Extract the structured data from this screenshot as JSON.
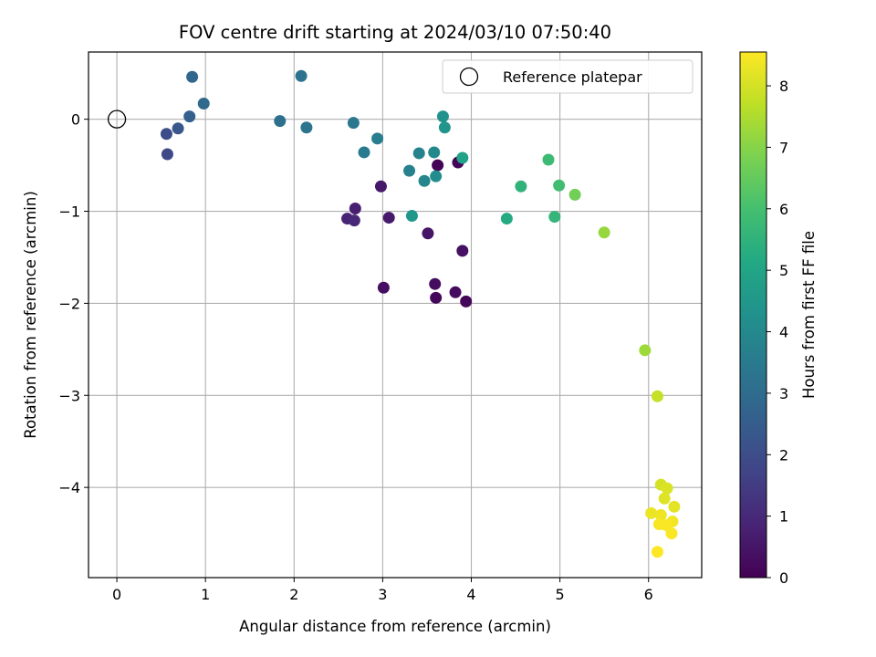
{
  "chart_data": {
    "type": "scatter",
    "title": "FOV centre drift starting at 2024/03/10 07:50:40",
    "xlabel": "Angular distance from reference (arcmin)",
    "ylabel": "Rotation from reference (arcmin)",
    "xlim": [
      -0.32,
      6.6
    ],
    "ylim": [
      -4.98,
      0.73
    ],
    "x_ticks": [
      0,
      1,
      2,
      3,
      4,
      5,
      6
    ],
    "x_tick_labels": [
      "0",
      "1",
      "2",
      "3",
      "4",
      "5",
      "6"
    ],
    "y_ticks": [
      0,
      -1,
      -2,
      -3,
      -4
    ],
    "y_tick_labels": [
      "0",
      "−1",
      "−2",
      "−3",
      "−4"
    ],
    "grid": true,
    "legend": {
      "position": "top-right",
      "label": "Reference platepar"
    },
    "reference_point": {
      "x": 0,
      "y": 0
    },
    "colorbar": {
      "label": "Hours from first FF file",
      "colormap": "viridis",
      "range": [
        0,
        8.55
      ],
      "ticks": [
        0,
        1,
        2,
        3,
        4,
        5,
        6,
        7,
        8
      ],
      "tick_labels": [
        "0",
        "1",
        "2",
        "3",
        "4",
        "5",
        "6",
        "7",
        "8"
      ]
    },
    "series": [
      {
        "points": [
          {
            "x": 3.62,
            "y": -0.5,
            "c": 0.05
          },
          {
            "x": 3.85,
            "y": -0.47,
            "c": 0.1
          },
          {
            "x": 3.94,
            "y": -1.98,
            "c": 0.15
          },
          {
            "x": 3.6,
            "y": -1.94,
            "c": 0.2
          },
          {
            "x": 3.82,
            "y": -1.88,
            "c": 0.25
          },
          {
            "x": 3.59,
            "y": -1.79,
            "c": 0.3
          },
          {
            "x": 3.01,
            "y": -1.83,
            "c": 0.35
          },
          {
            "x": 3.9,
            "y": -1.43,
            "c": 0.4
          },
          {
            "x": 3.51,
            "y": -1.24,
            "c": 0.5
          },
          {
            "x": 2.98,
            "y": -0.73,
            "c": 0.55
          },
          {
            "x": 3.07,
            "y": -1.07,
            "c": 0.6
          },
          {
            "x": 2.69,
            "y": -0.97,
            "c": 0.75
          },
          {
            "x": 2.6,
            "y": -1.08,
            "c": 0.85
          },
          {
            "x": 2.68,
            "y": -1.1,
            "c": 1.0
          },
          {
            "x": 0.57,
            "y": -0.38,
            "c": 1.9
          },
          {
            "x": 0.56,
            "y": -0.16,
            "c": 2.0
          },
          {
            "x": 0.69,
            "y": -0.1,
            "c": 2.3
          },
          {
            "x": 0.82,
            "y": 0.03,
            "c": 2.6
          },
          {
            "x": 0.85,
            "y": 0.46,
            "c": 2.8
          },
          {
            "x": 0.98,
            "y": 0.17,
            "c": 2.9
          },
          {
            "x": 1.84,
            "y": -0.02,
            "c": 3.1
          },
          {
            "x": 2.08,
            "y": 0.47,
            "c": 3.2
          },
          {
            "x": 2.14,
            "y": -0.09,
            "c": 3.3
          },
          {
            "x": 2.67,
            "y": -0.04,
            "c": 3.4
          },
          {
            "x": 2.79,
            "y": -0.36,
            "c": 3.5
          },
          {
            "x": 2.94,
            "y": -0.21,
            "c": 3.6
          },
          {
            "x": 3.3,
            "y": -0.56,
            "c": 3.7
          },
          {
            "x": 3.41,
            "y": -0.37,
            "c": 3.8
          },
          {
            "x": 3.47,
            "y": -0.67,
            "c": 3.9
          },
          {
            "x": 3.58,
            "y": -0.36,
            "c": 4.0
          },
          {
            "x": 3.6,
            "y": -0.62,
            "c": 4.1
          },
          {
            "x": 3.68,
            "y": 0.03,
            "c": 4.3
          },
          {
            "x": 3.7,
            "y": -0.09,
            "c": 4.4
          },
          {
            "x": 3.33,
            "y": -1.05,
            "c": 4.5
          },
          {
            "x": 3.9,
            "y": -0.42,
            "c": 4.9
          },
          {
            "x": 4.4,
            "y": -1.08,
            "c": 5.2
          },
          {
            "x": 4.56,
            "y": -0.73,
            "c": 5.5
          },
          {
            "x": 4.94,
            "y": -1.06,
            "c": 5.6
          },
          {
            "x": 4.87,
            "y": -0.44,
            "c": 5.8
          },
          {
            "x": 4.99,
            "y": -0.72,
            "c": 5.9
          },
          {
            "x": 5.17,
            "y": -0.82,
            "c": 6.7
          },
          {
            "x": 5.5,
            "y": -1.23,
            "c": 7.2
          },
          {
            "x": 5.96,
            "y": -2.51,
            "c": 7.3
          },
          {
            "x": 6.1,
            "y": -3.01,
            "c": 7.8
          },
          {
            "x": 6.14,
            "y": -3.97,
            "c": 8.0
          },
          {
            "x": 6.21,
            "y": -4.01,
            "c": 8.1
          },
          {
            "x": 6.18,
            "y": -4.12,
            "c": 8.15
          },
          {
            "x": 6.29,
            "y": -4.21,
            "c": 8.2
          },
          {
            "x": 6.03,
            "y": -4.28,
            "c": 8.3
          },
          {
            "x": 6.14,
            "y": -4.3,
            "c": 8.35
          },
          {
            "x": 6.27,
            "y": -4.37,
            "c": 8.4
          },
          {
            "x": 6.12,
            "y": -4.4,
            "c": 8.45
          },
          {
            "x": 6.2,
            "y": -4.41,
            "c": 8.5
          },
          {
            "x": 6.26,
            "y": -4.5,
            "c": 8.5
          },
          {
            "x": 6.1,
            "y": -4.7,
            "c": 8.55
          }
        ]
      }
    ]
  }
}
